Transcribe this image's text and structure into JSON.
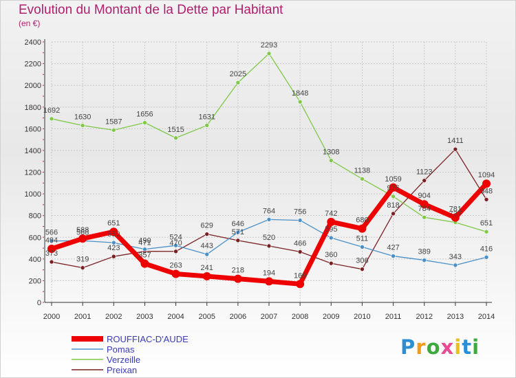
{
  "title": "Evolution du Montant de la Dette par Habitant",
  "subtitle": "(en €)",
  "logo": {
    "text": "Proxiti",
    "letter_colors": [
      "#2b8fd6",
      "#f29a1a",
      "#3daa3d",
      "#e84a93",
      "#e7c21e",
      "#2b8fd6",
      "#3daa3d"
    ]
  },
  "chart_data": {
    "type": "line",
    "title": "Evolution du Montant de la Dette par Habitant",
    "subtitle": "(en €)",
    "x": [
      "2000",
      "2001",
      "2002",
      "2003",
      "2004",
      "2005",
      "2006",
      "2007",
      "2008",
      "2009",
      "2010",
      "2011",
      "2012",
      "2013",
      "2014"
    ],
    "ylim": [
      0,
      2400
    ],
    "yticks": [
      0,
      200,
      400,
      600,
      800,
      1000,
      1200,
      1400,
      1600,
      1800,
      2000,
      2200,
      2400
    ],
    "grid": true,
    "legend_position": "bottom-left",
    "series": [
      {
        "name": "ROUFFIAC-D'AUDE",
        "color": "#ee0000",
        "values": [
          494,
          588,
          651,
          357,
          263,
          241,
          218,
          194,
          169,
          742,
          680,
          1059,
          904,
          781,
          1094
        ],
        "labels": [
          "494",
          "588",
          "651",
          "357",
          "263",
          "241",
          "218",
          "194",
          "169",
          "742",
          "680",
          "1059",
          "904",
          "781",
          "1094"
        ]
      },
      {
        "name": "Pomas",
        "color": "#4a90c8",
        "values": [
          566,
          568,
          550,
          490,
          524,
          443,
          646,
          764,
          756,
          595,
          511,
          427,
          389,
          343,
          416
        ],
        "labels": [
          "566",
          "568",
          "550",
          "490",
          "524",
          "443",
          "646",
          "764",
          "756",
          "595",
          "511",
          "427",
          "389",
          "343",
          "416"
        ]
      },
      {
        "name": "Verzeille",
        "color": "#80c848",
        "values": [
          1692,
          1630,
          1587,
          1656,
          1515,
          1631,
          2025,
          2293,
          1848,
          1308,
          1138,
          976,
          784,
          737,
          651
        ],
        "labels": [
          "1692",
          "1630",
          "1587",
          "1656",
          "1515",
          "1631",
          "2025",
          "2293",
          "1848",
          "1308",
          "1138",
          "976",
          "784",
          "737",
          "651"
        ]
      },
      {
        "name": "Preixan",
        "color": "#7a1f22",
        "values": [
          373,
          319,
          423,
          471,
          470,
          629,
          571,
          520,
          466,
          360,
          306,
          818,
          1123,
          1411,
          948
        ],
        "labels": [
          "373",
          "319",
          "423",
          "471",
          "470",
          "629",
          "571",
          "520",
          "466",
          "360",
          "306",
          "818",
          "1123",
          "1411",
          "948"
        ]
      }
    ]
  }
}
